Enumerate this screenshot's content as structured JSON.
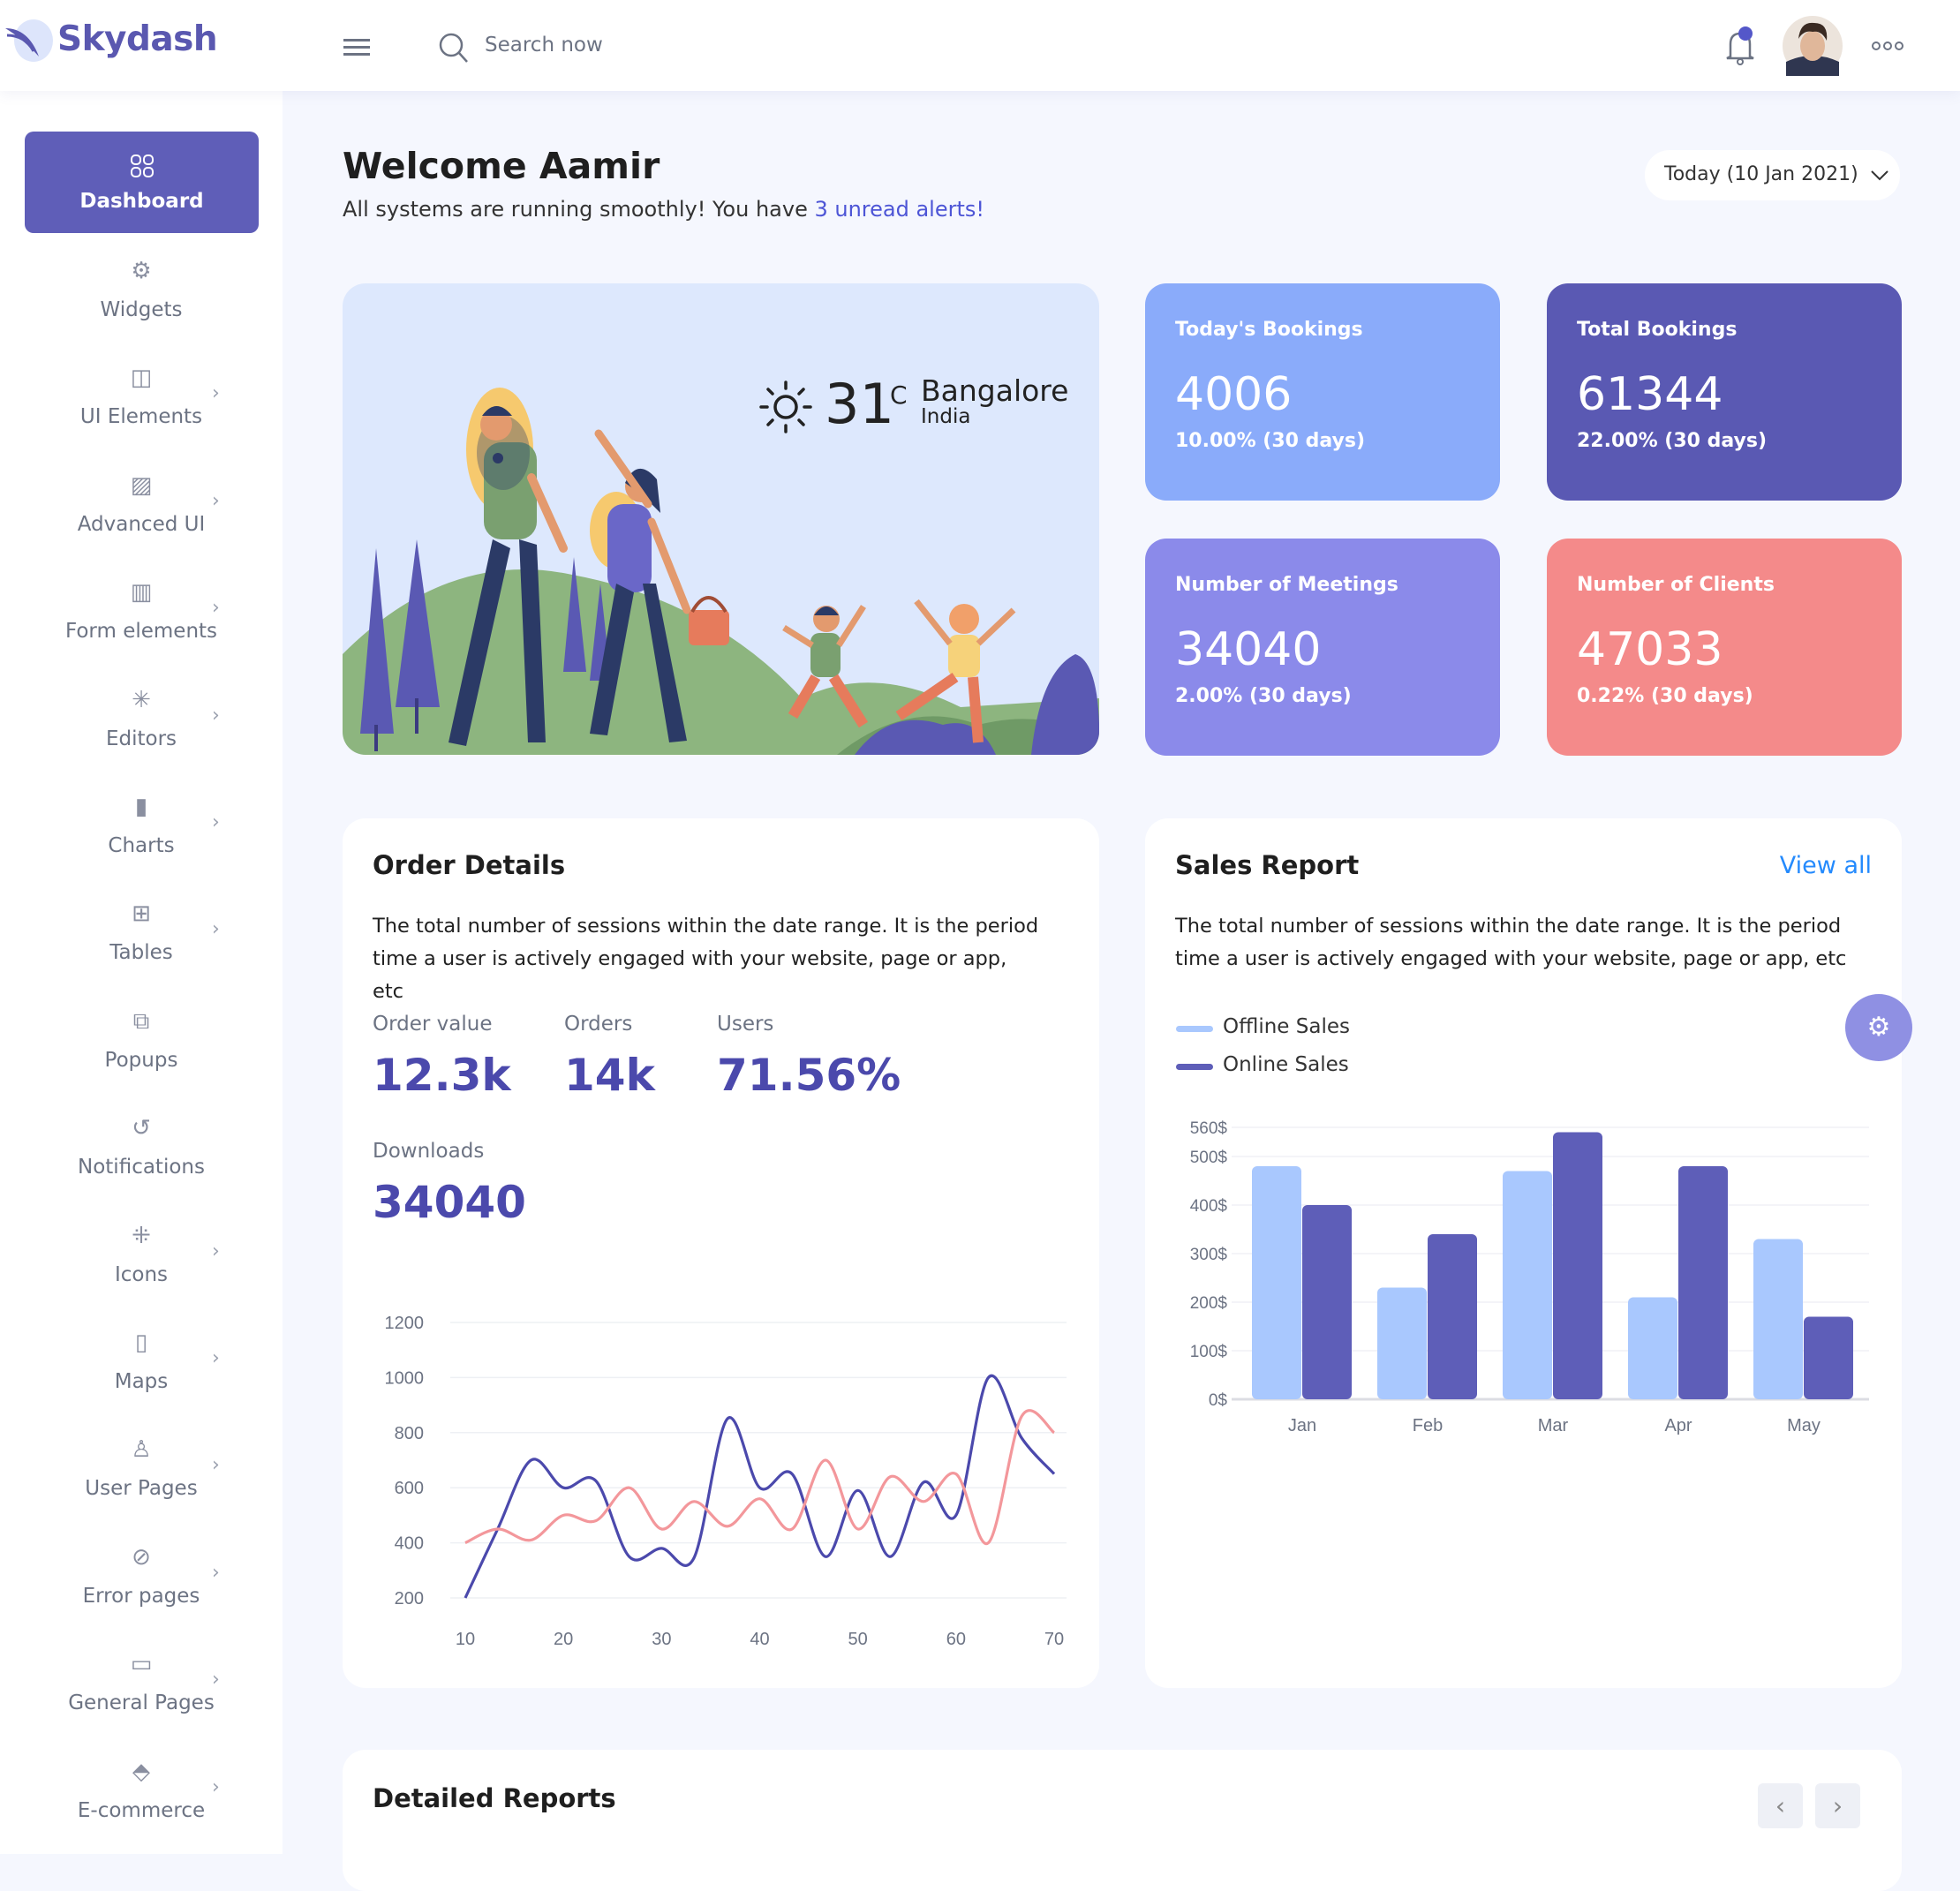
{
  "header": {
    "brand": "Skydash",
    "search_placeholder": "Search now",
    "icons": [
      "feather-logo-icon",
      "hamburger-menu-icon",
      "search-icon",
      "bell-icon",
      "avatar",
      "more-dots-icon"
    ]
  },
  "sidebar": {
    "active": {
      "label": "Dashboard",
      "icon": "grid-icon"
    },
    "items": [
      {
        "label": "Widgets",
        "icon": "gear-icon",
        "chevron": false
      },
      {
        "label": "UI Elements",
        "icon": "layout-icon",
        "chevron": true
      },
      {
        "label": "Advanced UI",
        "icon": "image-icon",
        "chevron": true
      },
      {
        "label": "Form elements",
        "icon": "columns-icon",
        "chevron": true
      },
      {
        "label": "Editors",
        "icon": "loader-icon",
        "chevron": true
      },
      {
        "label": "Charts",
        "icon": "bar-chart-icon",
        "chevron": true
      },
      {
        "label": "Tables",
        "icon": "table-icon",
        "chevron": true
      },
      {
        "label": "Popups",
        "icon": "external-link-icon",
        "chevron": false
      },
      {
        "label": "Notifications",
        "icon": "history-icon",
        "chevron": false
      },
      {
        "label": "Icons",
        "icon": "minimize-icon",
        "chevron": true
      },
      {
        "label": "Maps",
        "icon": "map-icon",
        "chevron": true
      },
      {
        "label": "User Pages",
        "icon": "user-icon",
        "chevron": true
      },
      {
        "label": "Error pages",
        "icon": "ban-icon",
        "chevron": true
      },
      {
        "label": "General Pages",
        "icon": "book-icon",
        "chevron": true
      },
      {
        "label": "E-commerce",
        "icon": "tag-icon",
        "chevron": true
      }
    ]
  },
  "welcome": {
    "title": "Welcome Aamir",
    "subtitle": "All systems are running smoothly! You have ",
    "alerts_link": "3 unread alerts!",
    "date_select": "Today (10 Jan 2021)"
  },
  "weather": {
    "temp": "31",
    "unit": "C",
    "city": "Bangalore",
    "country": "India"
  },
  "stats": [
    {
      "title": "Today's Bookings",
      "value": "4006",
      "sub": "10.00% (30 days)",
      "color": "#8aabfa"
    },
    {
      "title": "Total Bookings",
      "value": "61344",
      "sub": "22.00% (30 days)",
      "color": "#5a59b3"
    },
    {
      "title": "Number of Meetings",
      "value": "34040",
      "sub": "2.00% (30 days)",
      "color": "#8b8aea"
    },
    {
      "title": "Number of Clients",
      "value": "47033",
      "sub": "0.22% (30 days)",
      "color": "#f48a8a"
    }
  ],
  "order_details": {
    "title": "Order Details",
    "description": "The total number of sessions within the date range. It is the period time a user is actively engaged with your website, page or app, etc",
    "metrics": [
      {
        "label": "Order value",
        "value": "12.3k"
      },
      {
        "label": "Orders",
        "value": "14k"
      },
      {
        "label": "Users",
        "value": "71.56%"
      },
      {
        "label": "Downloads",
        "value": "34040"
      }
    ]
  },
  "sales_report": {
    "title": "Sales Report",
    "view_all": "View all",
    "description": "The total number of sessions within the date range. It is the period time a user is actively engaged with your website, page or app, etc",
    "legend": [
      "Offline Sales",
      "Online Sales"
    ]
  },
  "detailed_reports": {
    "title": "Detailed Reports"
  },
  "chart_data": [
    {
      "type": "line",
      "ylim": [
        200,
        1200
      ],
      "yticks": [
        200,
        400,
        600,
        800,
        1000,
        1200
      ],
      "xticks": [
        10,
        20,
        30,
        40,
        50,
        60,
        70
      ],
      "grid": true,
      "x": [
        10,
        13.3,
        16.7,
        20,
        23.3,
        26.7,
        30,
        33.3,
        36.7,
        40,
        43.3,
        46.7,
        50,
        53.3,
        56.7,
        60,
        63.3,
        66.7,
        70
      ],
      "series": [
        {
          "color": "#4b49ac",
          "values": [
            200,
            450,
            700,
            600,
            625,
            350,
            380,
            345,
            850,
            600,
            650,
            350,
            590,
            350,
            620,
            500,
            1000,
            780,
            650
          ]
        },
        {
          "color": "#f3979b",
          "values": [
            400,
            450,
            410,
            500,
            480,
            600,
            450,
            550,
            460,
            560,
            450,
            700,
            450,
            640,
            550,
            650,
            400,
            860,
            800
          ]
        }
      ]
    },
    {
      "type": "bar",
      "categories": [
        "Jan",
        "Feb",
        "Mar",
        "Apr",
        "May"
      ],
      "ylim": [
        0,
        560
      ],
      "yticks": [
        "0$",
        "100$",
        "200$",
        "300$",
        "400$",
        "500$",
        "560$"
      ],
      "ytick_values": [
        0,
        100,
        200,
        300,
        400,
        500,
        560
      ],
      "grid": true,
      "legend": "top-left",
      "series": [
        {
          "name": "Offline Sales",
          "color": "#a9c8fe",
          "values": [
            480,
            230,
            470,
            210,
            330
          ]
        },
        {
          "name": "Online Sales",
          "color": "#5e5eb8",
          "values": [
            400,
            340,
            550,
            480,
            170
          ]
        }
      ]
    }
  ]
}
